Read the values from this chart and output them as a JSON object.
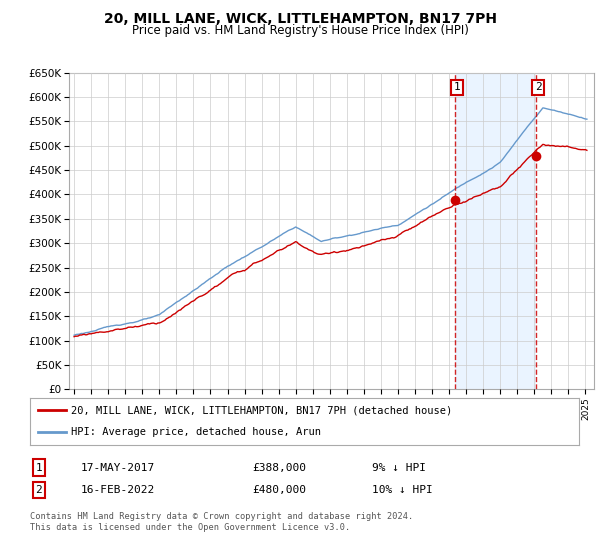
{
  "title": "20, MILL LANE, WICK, LITTLEHAMPTON, BN17 7PH",
  "subtitle": "Price paid vs. HM Land Registry's House Price Index (HPI)",
  "ylim": [
    0,
    650000
  ],
  "yticks": [
    0,
    50000,
    100000,
    150000,
    200000,
    250000,
    300000,
    350000,
    400000,
    450000,
    500000,
    550000,
    600000,
    650000
  ],
  "xlim_start": 1994.7,
  "xlim_end": 2025.5,
  "transaction1_date": 2017.37,
  "transaction1_price": 388000,
  "transaction2_date": 2022.12,
  "transaction2_price": 480000,
  "hpi_color": "#6699cc",
  "property_color": "#cc0000",
  "legend_property": "20, MILL LANE, WICK, LITTLEHAMPTON, BN17 7PH (detached house)",
  "legend_hpi": "HPI: Average price, detached house, Arun",
  "footnote": "Contains HM Land Registry data © Crown copyright and database right 2024.\nThis data is licensed under the Open Government Licence v3.0.",
  "table_row1": [
    "1",
    "17-MAY-2017",
    "£388,000",
    "9% ↓ HPI"
  ],
  "table_row2": [
    "2",
    "16-FEB-2022",
    "£480,000",
    "10% ↓ HPI"
  ],
  "background_color": "#ffffff",
  "grid_color": "#cccccc",
  "shade_color": "#ddeeff"
}
